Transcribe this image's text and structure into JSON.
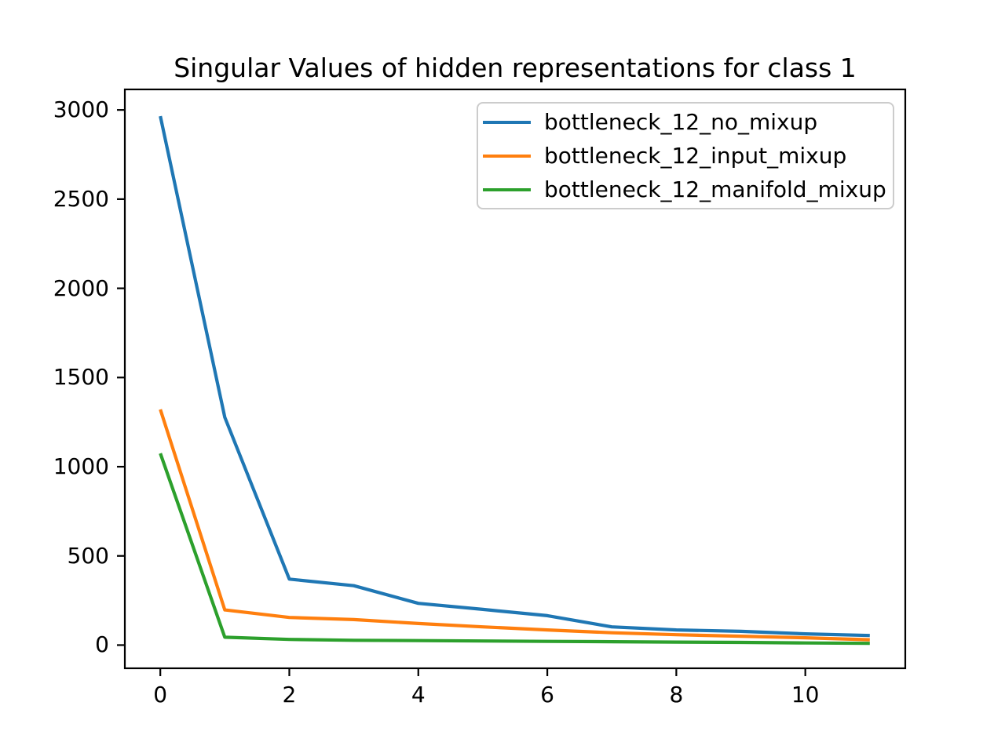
{
  "chart_data": {
    "type": "line",
    "title": "Singular Values of hidden representations for class 1",
    "xlabel": "",
    "ylabel": "",
    "x": [
      0,
      1,
      2,
      3,
      4,
      5,
      6,
      7,
      8,
      9,
      10,
      11
    ],
    "series": [
      {
        "name": "bottleneck_12_no_mixup",
        "color": "#1f77b4",
        "values": [
          2965,
          1277,
          370,
          333,
          234,
          200,
          165,
          102,
          85,
          77,
          63,
          54
        ]
      },
      {
        "name": "bottleneck_12_input_mixup",
        "color": "#ff7f0e",
        "values": [
          1321,
          197,
          155,
          143,
          121,
          102,
          85,
          69,
          58,
          50,
          41,
          30
        ]
      },
      {
        "name": "bottleneck_12_manifold_mixup",
        "color": "#2ca02c",
        "values": [
          1075,
          44,
          32,
          27,
          25,
          23,
          21,
          19,
          17,
          15,
          12,
          10
        ]
      }
    ],
    "xticks": [
      0,
      2,
      4,
      6,
      8,
      10
    ],
    "yticks": [
      0,
      500,
      1000,
      1500,
      2000,
      2500,
      3000
    ],
    "xlim": [
      -0.55,
      11.55
    ],
    "ylim": [
      -130,
      3115
    ],
    "grid": false,
    "legend_position": "upper right",
    "axis_color": "#000000",
    "background_color": "#ffffff",
    "legend_border_color": "#cccccc",
    "line_width": 4.2,
    "spine_width": 2.2
  }
}
